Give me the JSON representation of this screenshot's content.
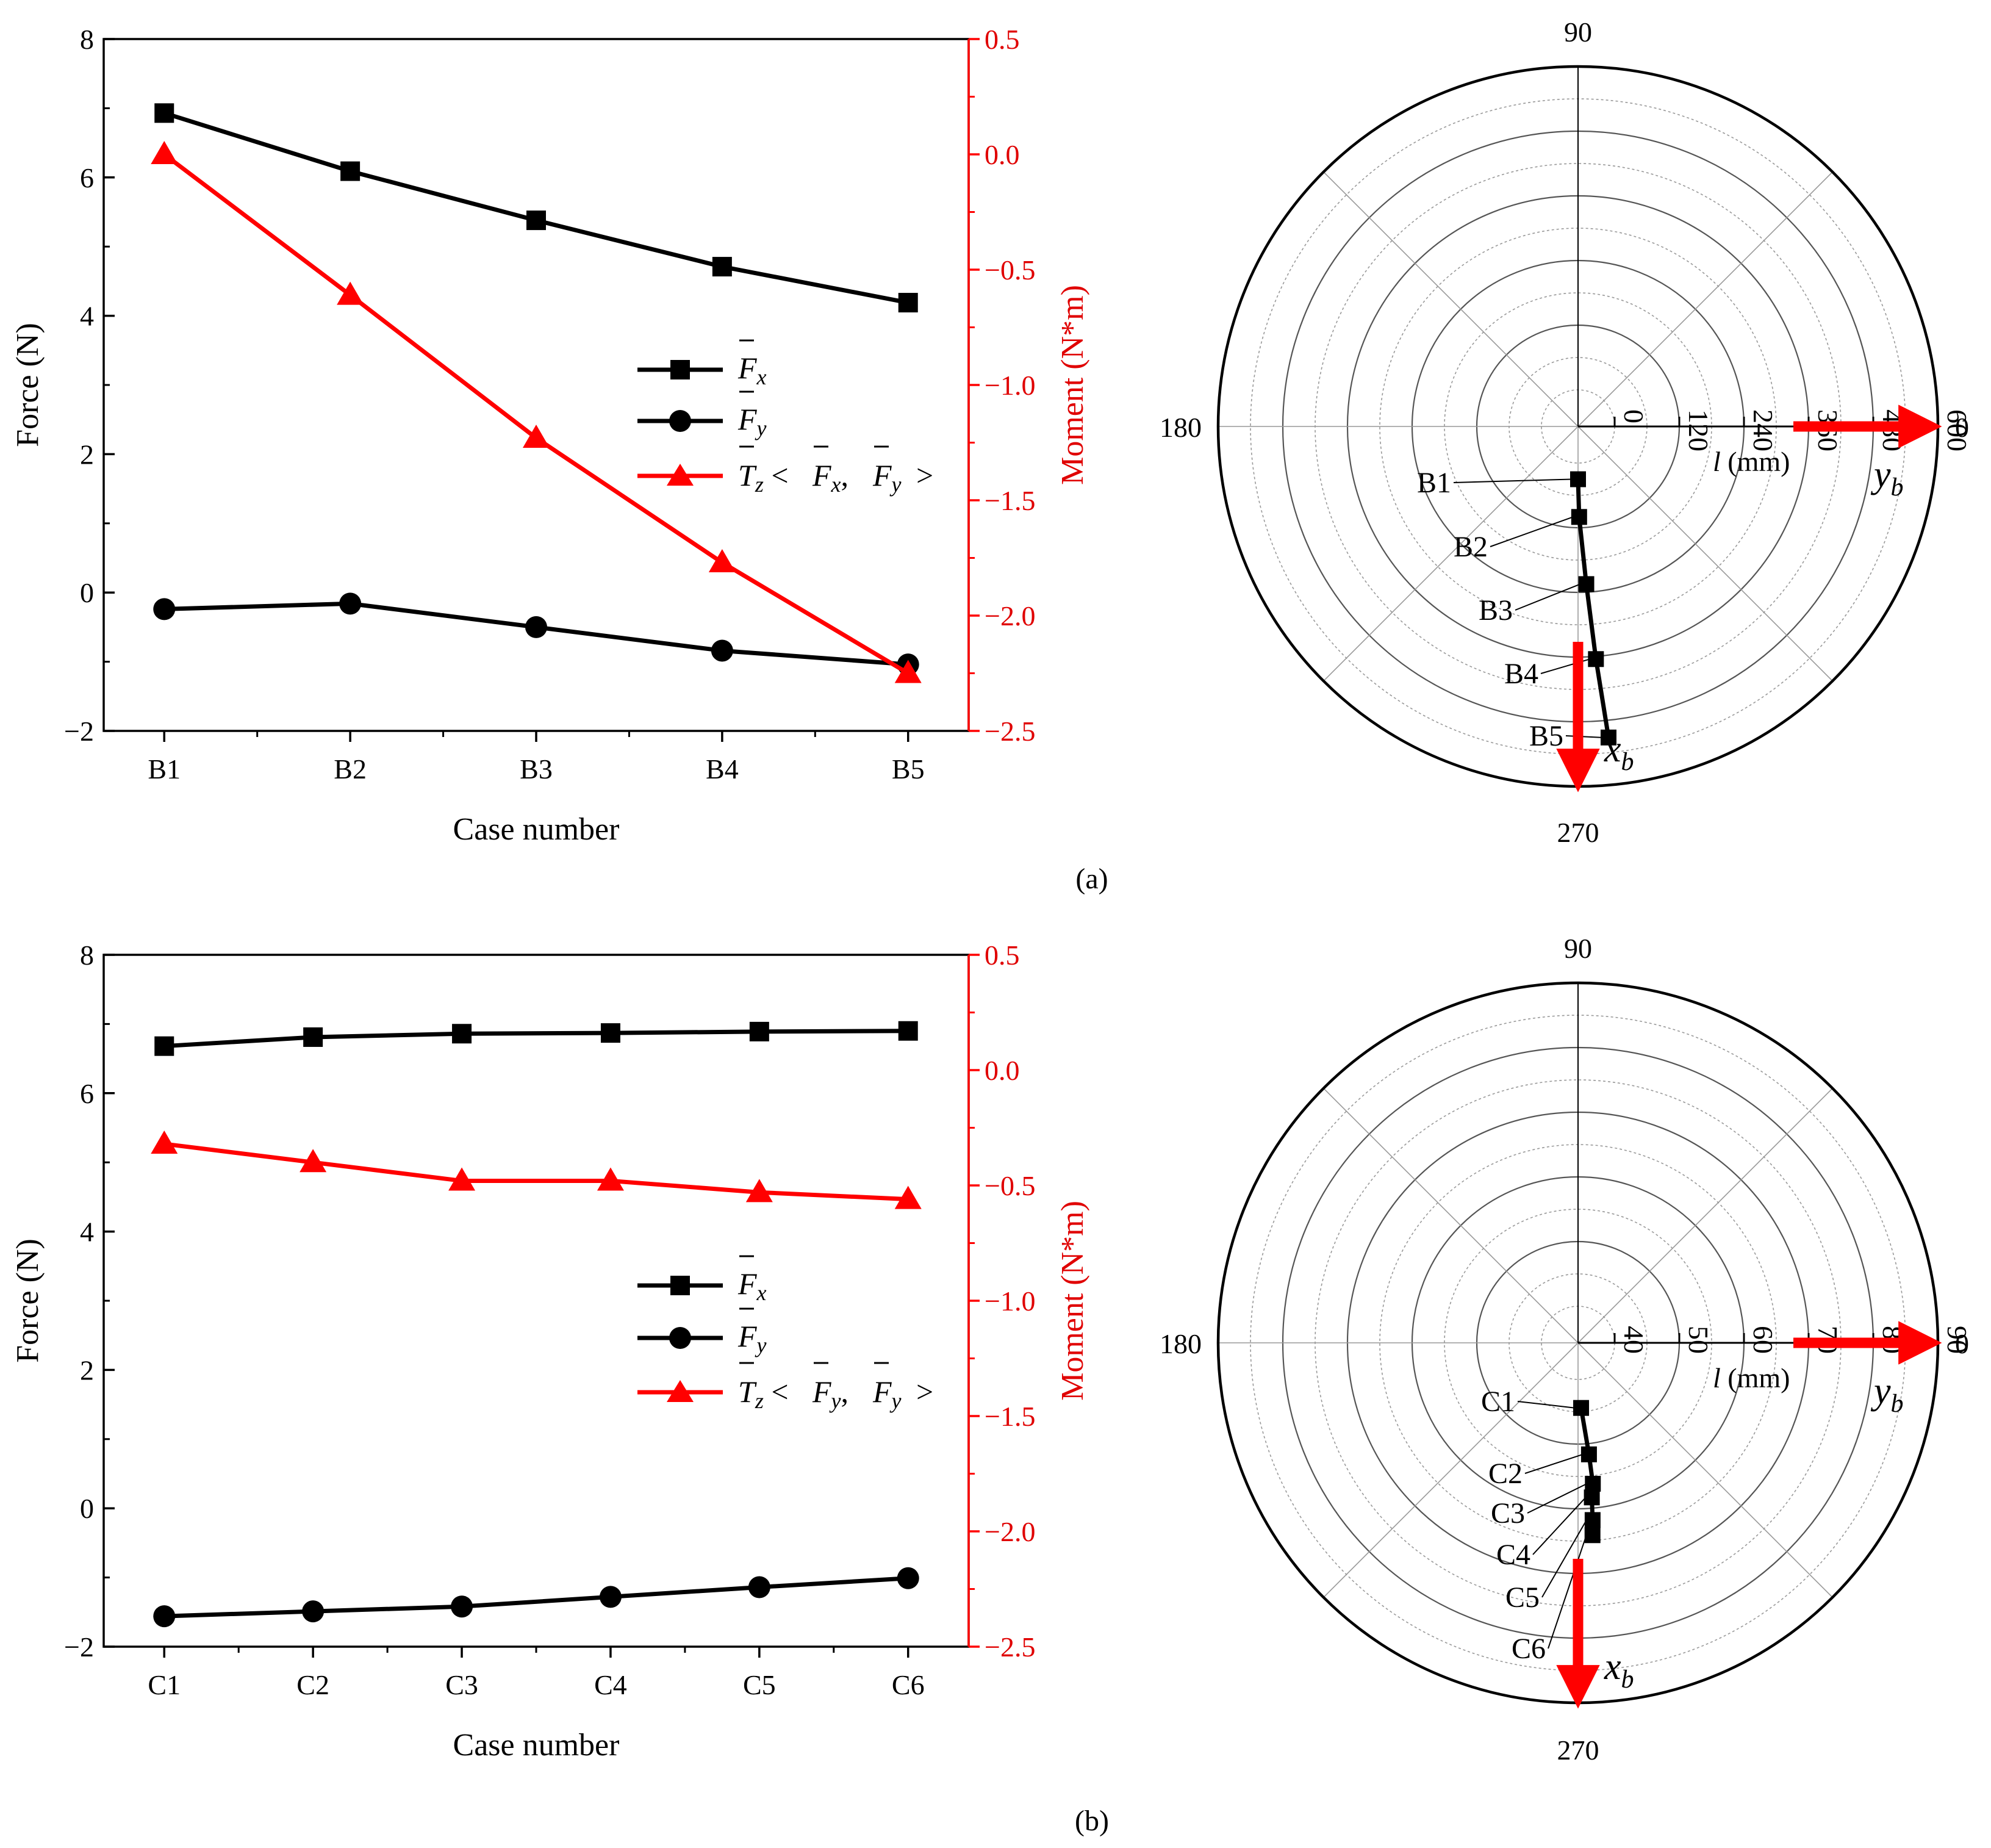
{
  "chart_data": [
    {
      "panel": "(a)",
      "type": "line",
      "xlabel": "Case number",
      "ylabel": "Force (N)",
      "y2label": "Moment (N*m)",
      "categories": [
        "B1",
        "B2",
        "B3",
        "B4",
        "B5"
      ],
      "ylim": [
        -2,
        8
      ],
      "yticks": [
        "−2",
        "0",
        "2",
        "4",
        "6",
        "8"
      ],
      "y2lim": [
        -2.5,
        0.5
      ],
      "y2ticks": [
        "−2.5",
        "−2.0",
        "−1.5",
        "−1.0",
        "−0.5",
        "0.0",
        "0.5"
      ],
      "series": [
        {
          "name": "Fx",
          "axis": "left",
          "marker": "square",
          "color": "#000000",
          "values": [
            6.93,
            6.09,
            5.38,
            4.71,
            4.19
          ]
        },
        {
          "name": "Fy",
          "axis": "left",
          "marker": "circle",
          "color": "#000000",
          "values": [
            -0.24,
            -0.16,
            -0.5,
            -0.84,
            -1.04
          ]
        },
        {
          "name": "Tz<Fx,Fy>",
          "axis": "right",
          "marker": "triangle",
          "color": "#ff0000",
          "values": [
            0.0,
            -0.61,
            -1.23,
            -1.77,
            -2.25
          ]
        }
      ],
      "legend": {
        "fx": {
          "main": "F",
          "sub": "x"
        },
        "fy": {
          "main": "F",
          "sub": "y"
        },
        "tz": {
          "main": "T",
          "sub": "z",
          "lt": " <",
          "f1": "F",
          "s1": "x",
          "comma": ",",
          "f2": "F",
          "s2": "y",
          "gt": ">"
        }
      }
    },
    {
      "panel": "(a)",
      "type": "polar",
      "angle_labels": {
        "a0": "0",
        "a90": "90",
        "a180": "180",
        "a270": "270"
      },
      "radial_ticks": [
        "0",
        "120",
        "240",
        "360",
        "480",
        "600"
      ],
      "rlim": [
        0,
        600
      ],
      "radial_label": {
        "var": "l",
        "unit": " (mm)"
      },
      "points": [
        {
          "label": "B1",
          "angle": 270.0,
          "r": 30
        },
        {
          "label": "B2",
          "angle": 270.7,
          "r": 100
        },
        {
          "label": "B3",
          "angle": 273.0,
          "r": 225
        },
        {
          "label": "B4",
          "angle": 274.4,
          "r": 365
        },
        {
          "label": "B5",
          "angle": 275.6,
          "r": 512
        }
      ],
      "axes_arrows": {
        "x": {
          "main": "x",
          "sub": "b"
        },
        "y": {
          "main": "y",
          "sub": "b"
        }
      }
    },
    {
      "panel": "(b)",
      "type": "line",
      "xlabel": "Case number",
      "ylabel": "Force (N)",
      "y2label": "Moment (N*m)",
      "categories": [
        "C1",
        "C2",
        "C3",
        "C4",
        "C5",
        "C6"
      ],
      "ylim": [
        -2,
        8
      ],
      "yticks": [
        "−2",
        "0",
        "2",
        "4",
        "6",
        "8"
      ],
      "y2lim": [
        -2.5,
        0.5
      ],
      "y2ticks": [
        "−2.5",
        "−2.0",
        "−1.5",
        "−1.0",
        "−0.5",
        "0.0",
        "0.5"
      ],
      "series": [
        {
          "name": "Fx",
          "axis": "left",
          "marker": "square",
          "color": "#000000",
          "values": [
            6.68,
            6.81,
            6.86,
            6.87,
            6.89,
            6.9
          ]
        },
        {
          "name": "Fy",
          "axis": "left",
          "marker": "circle",
          "color": "#000000",
          "values": [
            -1.56,
            -1.49,
            -1.42,
            -1.28,
            -1.14,
            -1.01
          ]
        },
        {
          "name": "Tz<Fy,Fy>",
          "axis": "right",
          "marker": "triangle",
          "color": "#ff0000",
          "values": [
            -0.32,
            -0.4,
            -0.48,
            -0.48,
            -0.53,
            -0.56
          ]
        }
      ],
      "legend": {
        "fx": {
          "main": "F",
          "sub": "x"
        },
        "fy": {
          "main": "F",
          "sub": "y"
        },
        "tz": {
          "main": "T",
          "sub": "z",
          "lt": " <",
          "f1": "F",
          "s1": "y",
          "comma": ",",
          "f2": "F",
          "s2": "y",
          "gt": ">"
        }
      }
    },
    {
      "panel": "(b)",
      "type": "polar",
      "angle_labels": {
        "a0": "0",
        "a90": "90",
        "a180": "180",
        "a270": "270"
      },
      "radial_ticks": [
        "40",
        "50",
        "60",
        "70",
        "80",
        "90"
      ],
      "rlim": [
        30,
        90
      ],
      "radial_label": {
        "var": "l",
        "unit": " (mm)"
      },
      "points": [
        {
          "label": "C1",
          "angle": 272.7,
          "r": 35.3
        },
        {
          "label": "C2",
          "angle": 275.6,
          "r": 44.0
        },
        {
          "label": "C3",
          "angle": 276.0,
          "r": 49.5
        },
        {
          "label": "C4",
          "angle": 275.1,
          "r": 52.0
        },
        {
          "label": "C5",
          "angle": 274.7,
          "r": 56.2
        },
        {
          "label": "C6",
          "angle": 274.3,
          "r": 59.0
        }
      ],
      "axes_arrows": {
        "x": {
          "main": "x",
          "sub": "b"
        },
        "y": {
          "main": "y",
          "sub": "b"
        }
      }
    }
  ],
  "captions": {
    "a": "(a)",
    "b": "(b)"
  }
}
